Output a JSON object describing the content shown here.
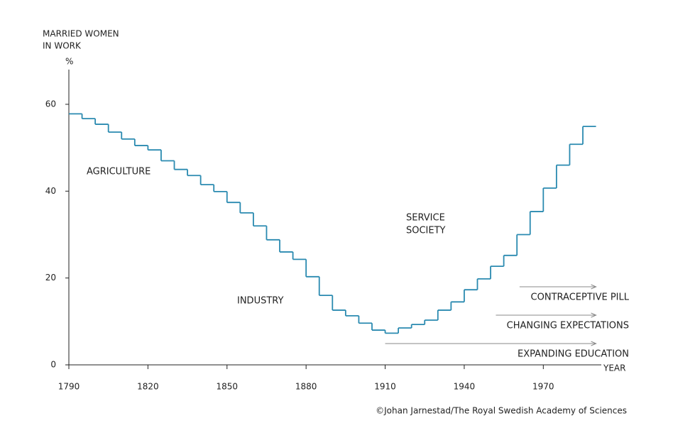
{
  "chart_data": {
    "type": "step",
    "y_title": [
      "MARRIED WOMEN",
      "IN WORK"
    ],
    "y_unit": "%",
    "x_title": "YEAR",
    "credit": "©Johan Jarnestad/The Royal Swedish Academy of Sciences",
    "color": "#2a8ab0",
    "x": [
      1790,
      1795,
      1800,
      1805,
      1810,
      1815,
      1820,
      1825,
      1830,
      1835,
      1840,
      1845,
      1850,
      1855,
      1860,
      1865,
      1870,
      1875,
      1880,
      1885,
      1890,
      1895,
      1900,
      1905,
      1910,
      1915,
      1920,
      1925,
      1930,
      1935,
      1940,
      1945,
      1950,
      1955,
      1960,
      1965,
      1970,
      1975,
      1980,
      1985
    ],
    "values": [
      57.8,
      56.7,
      55.4,
      53.6,
      52,
      50.5,
      49.5,
      47,
      45,
      43.6,
      41.5,
      39.9,
      37.4,
      35,
      32,
      28.8,
      26,
      24.3,
      20.3,
      16,
      12.6,
      11.3,
      9.6,
      8,
      7.3,
      8.5,
      9.3,
      10.3,
      12.6,
      14.5,
      17.3,
      19.8,
      22.7,
      25.2,
      30,
      35.3,
      40.7,
      46,
      50.8,
      54.9
    ],
    "xlim": [
      1790,
      1992
    ],
    "ylim": [
      0,
      68
    ],
    "xticks": [
      1790,
      1820,
      1850,
      1880,
      1910,
      1940,
      1970
    ],
    "yticks": [
      0,
      20,
      40,
      60
    ],
    "labels": [
      [
        "AGRICULTURE"
      ],
      [
        "INDUSTRY"
      ],
      [
        "SERVICE",
        "SOCIETY"
      ]
    ],
    "annotations": [
      {
        "text": "CONTRACEPTIVE PILL",
        "start": 1961,
        "end": 1990
      },
      {
        "text": "CHANGING EXPECTATIONS",
        "start": 1952,
        "end": 1990
      },
      {
        "text": "EXPANDING EDUCATION",
        "start": 1910,
        "end": 1990
      }
    ]
  }
}
